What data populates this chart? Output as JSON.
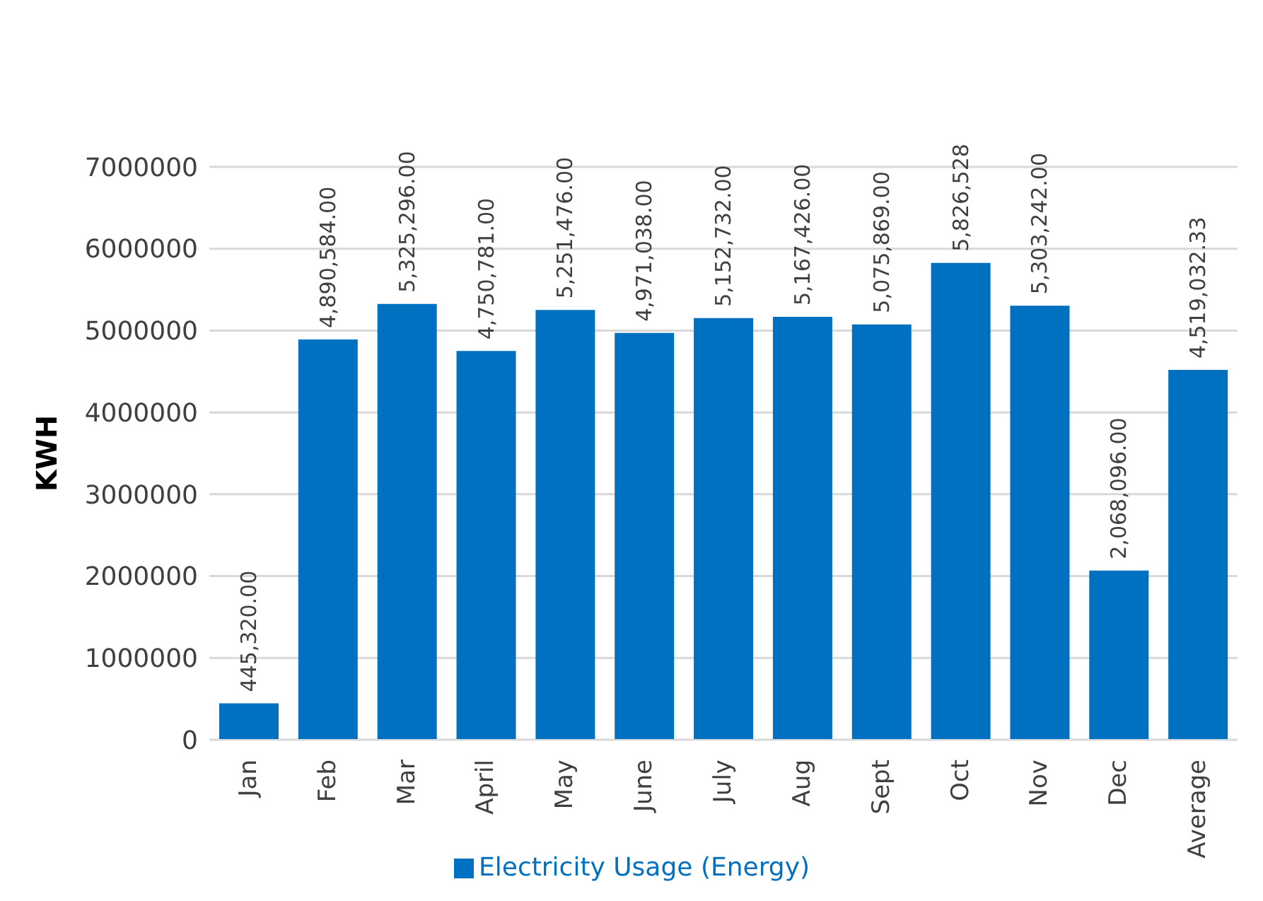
{
  "chart_data": {
    "type": "bar",
    "ylabel": "KWH",
    "categories": [
      "Jan",
      "Feb",
      "Mar",
      "April",
      "May",
      "June",
      "July",
      "Aug",
      "Sept",
      "Oct",
      "Nov",
      "Dec",
      "Average"
    ],
    "series": [
      {
        "name": "Electricity Usage (Energy)",
        "color": "#0070c0",
        "values": [
          445320,
          4890584,
          5325296,
          4750781,
          5251476,
          4971038,
          5152732,
          5167426,
          5075869,
          5826528,
          5303242,
          2068096,
          4519032.33
        ],
        "value_labels": [
          "445,320.00",
          "4,890,584.00",
          "5,325,296.00",
          "4,750,781.00",
          "5,251,476.00",
          "4,971,038.00",
          "5,152,732.00",
          "5,167,426.00",
          "5,075,869.00",
          "5,826,528",
          "5,303,242.00",
          "2,068,096.00",
          "4,519,032.33"
        ]
      }
    ],
    "ylim": [
      0,
      7000000
    ],
    "yticks": [
      0,
      1000000,
      2000000,
      3000000,
      4000000,
      5000000,
      6000000,
      7000000
    ],
    "grid": "y",
    "legend": "bottom"
  }
}
